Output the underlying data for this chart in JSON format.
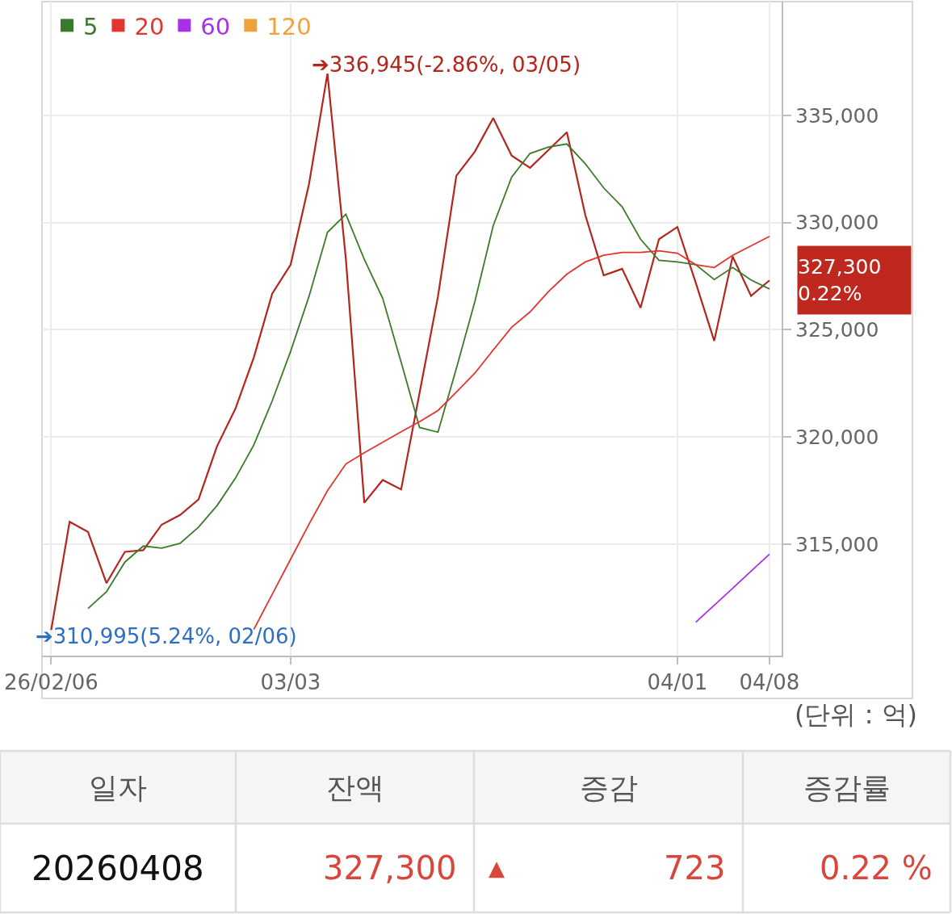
{
  "chart_data": {
    "type": "line",
    "categories": [
      "26/02/06",
      null,
      null,
      null,
      null,
      null,
      null,
      null,
      null,
      null,
      null,
      null,
      null,
      "03/03",
      null,
      null,
      null,
      null,
      null,
      null,
      null,
      null,
      null,
      null,
      null,
      null,
      null,
      null,
      null,
      null,
      null,
      null,
      null,
      null,
      "04/01",
      null,
      null,
      null,
      null,
      "04/08"
    ],
    "series": [
      {
        "color": "#b3261e",
        "values": [
          310995,
          316040,
          315570,
          313180,
          314640,
          314720,
          315910,
          316360,
          317080,
          319560,
          321310,
          323700,
          326680,
          328030,
          331800,
          336945,
          328300,
          316930,
          317990,
          317550,
          322050,
          326550,
          332180,
          333300,
          334870,
          333120,
          332550,
          333380,
          334210,
          330350,
          327530,
          327840,
          326020,
          329220,
          329790,
          327180,
          324480,
          328410,
          326580,
          327300
        ]
      },
      {
        "name": "5",
        "color": "#3b7a2b",
        "values": [
          null,
          null,
          312000,
          312780,
          314160,
          314910,
          314810,
          315040,
          315790,
          316790,
          318070,
          319620,
          321680,
          323990,
          326560,
          329540,
          330380,
          328280,
          326460,
          323490,
          320440,
          320220,
          323200,
          326300,
          329850,
          332110,
          333220,
          333520,
          333660,
          332740,
          331610,
          330730,
          329220,
          328240,
          328160,
          328030,
          327340,
          327900,
          327320,
          326900
        ]
      },
      {
        "name": "20",
        "color": "#e3342f",
        "values": [
          null,
          null,
          null,
          null,
          null,
          null,
          null,
          null,
          null,
          null,
          null,
          311020,
          312660,
          314300,
          315930,
          317490,
          318740,
          319260,
          319750,
          320240,
          320710,
          321230,
          322090,
          322970,
          324050,
          325110,
          325830,
          326780,
          327590,
          328160,
          328470,
          328600,
          328600,
          328680,
          328570,
          328030,
          327900,
          328470,
          328910,
          329350
        ]
      },
      {
        "name": "60",
        "color": "#a930e8",
        "values": [
          null,
          null,
          null,
          null,
          null,
          null,
          null,
          null,
          null,
          null,
          null,
          null,
          null,
          null,
          null,
          null,
          null,
          null,
          null,
          null,
          null,
          null,
          null,
          null,
          null,
          null,
          null,
          null,
          null,
          null,
          null,
          null,
          null,
          null,
          null,
          311360,
          312150,
          312940,
          313740,
          314530
        ]
      },
      {
        "name": "120",
        "color": "#f0a23a",
        "values": [
          null,
          null,
          null,
          null,
          null,
          null,
          null,
          null,
          null,
          null,
          null,
          null,
          null,
          null,
          null,
          null,
          null,
          null,
          null,
          null,
          null,
          null,
          null,
          null,
          null,
          null,
          null,
          null,
          null,
          null,
          null,
          null,
          null,
          null,
          null,
          null,
          null,
          null,
          null,
          null
        ]
      }
    ],
    "ylim": [
      309800,
      340300
    ],
    "yticks": [
      {
        "value": 315000,
        "label": "315,000"
      },
      {
        "value": 320000,
        "label": "320,000"
      },
      {
        "value": 325000,
        "label": "325,000"
      },
      {
        "value": 330000,
        "label": "330,000"
      },
      {
        "value": 335000,
        "label": "335,000"
      }
    ],
    "grid": true,
    "legend": "top left",
    "annotations": [
      "➔336,945(-2.86%, 03/05)",
      {
        "text": "➔310,995(5.24%, 02/06)",
        "x": "26/02/06",
        "y": 310995
      },
      {
        "text": "327,300\n0.22%",
        "x": "04/08",
        "y": 327300
      },
      "(단위 : 억)",
      "일자",
      "잔액",
      "증감",
      "증감률",
      "20260408",
      "327,300",
      "▲",
      "723",
      "0.22 %"
    ]
  }
}
